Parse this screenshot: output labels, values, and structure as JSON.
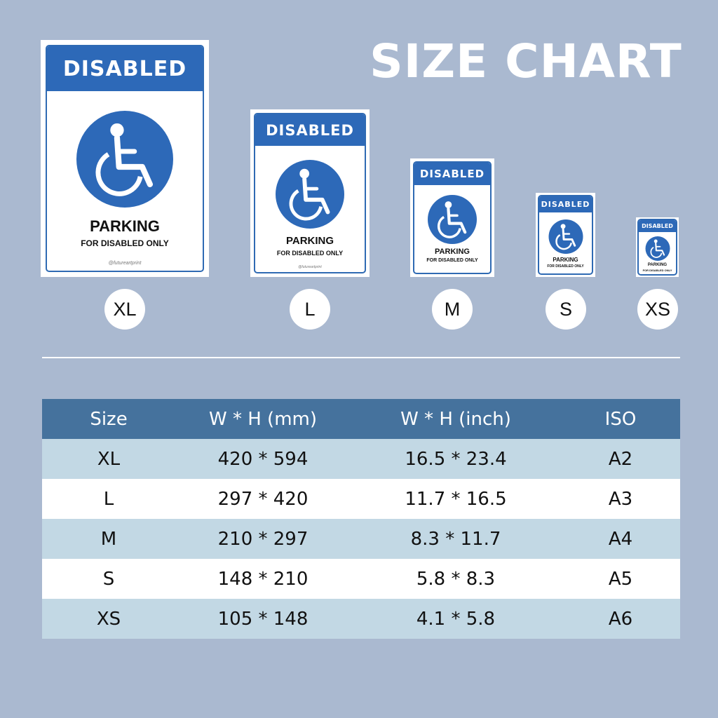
{
  "title": "SIZE CHART",
  "sign": {
    "header": "DISABLED",
    "parking": "PARKING",
    "subtitle": "FOR DISABLED ONLY",
    "handle": "@futureartprint",
    "icon": "wheelchair-icon"
  },
  "sizes": [
    "XL",
    "L",
    "M",
    "S",
    "XS"
  ],
  "table": {
    "headers": [
      "Size",
      "W * H (mm)",
      "W * H (inch)",
      "ISO"
    ],
    "rows": [
      [
        "XL",
        "420 * 594",
        "16.5 * 23.4",
        "A2"
      ],
      [
        "L",
        "297 * 420",
        "11.7 * 16.5",
        "A3"
      ],
      [
        "M",
        "210 * 297",
        "8.3 * 11.7",
        "A4"
      ],
      [
        "S",
        "148 * 210",
        "5.8 * 8.3",
        "A5"
      ],
      [
        "XS",
        "105 * 148",
        "4.1 * 5.8",
        "A6"
      ]
    ]
  },
  "colors": {
    "background": "#aab9d0",
    "sign_blue": "#2d69b8",
    "table_header": "#45729d",
    "row_tint": "#c2d8e4"
  }
}
